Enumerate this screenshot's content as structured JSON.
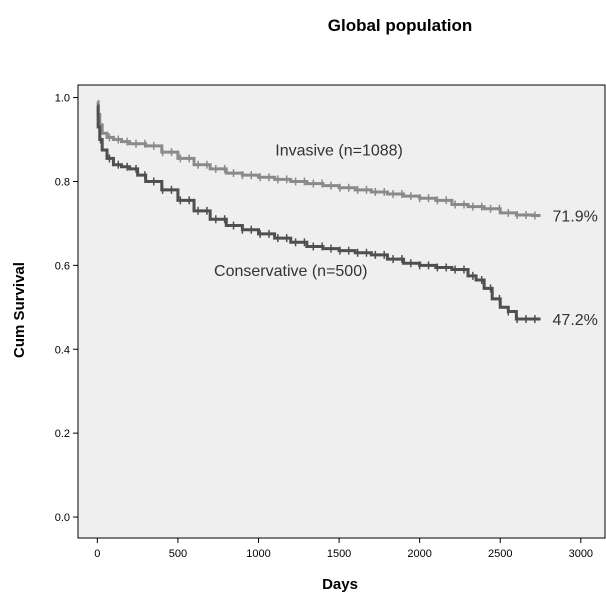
{
  "chart_data": {
    "type": "line",
    "title": "Global population",
    "xlabel": "Days",
    "ylabel": "Cum Survival",
    "xlim": [
      -120,
      3150
    ],
    "ylim": [
      -0.05,
      1.03
    ],
    "x_ticks": [
      0,
      500,
      1000,
      1500,
      2000,
      2500,
      3000
    ],
    "x_tick_labels": [
      "0",
      "500",
      "1000",
      "1500",
      "2000",
      "2500",
      "3000"
    ],
    "y_ticks": [
      0.0,
      0.2,
      0.4,
      0.6,
      0.8,
      1.0
    ],
    "y_tick_labels": [
      "0.0",
      "0.2",
      "0.4",
      "0.6",
      "0.8",
      "1.0"
    ],
    "plot_background": "#efefef",
    "grid": false,
    "legend": "none",
    "series": [
      {
        "name": "Invasive (n=1088)",
        "end_label": "71.9%",
        "color": "#8a8a8a",
        "x": [
          0,
          5,
          15,
          30,
          60,
          100,
          150,
          200,
          300,
          400,
          500,
          600,
          700,
          800,
          900,
          1000,
          1100,
          1200,
          1300,
          1400,
          1500,
          1600,
          1700,
          1800,
          1900,
          2000,
          2100,
          2200,
          2300,
          2400,
          2500,
          2600,
          2700,
          2750
        ],
        "y": [
          0.99,
          0.96,
          0.935,
          0.915,
          0.905,
          0.9,
          0.895,
          0.89,
          0.885,
          0.87,
          0.855,
          0.84,
          0.83,
          0.82,
          0.815,
          0.81,
          0.805,
          0.8,
          0.795,
          0.79,
          0.785,
          0.78,
          0.775,
          0.77,
          0.765,
          0.76,
          0.755,
          0.745,
          0.74,
          0.735,
          0.725,
          0.72,
          0.719,
          0.719
        ]
      },
      {
        "name": "Conservative (n=500)",
        "end_label": "47.2%",
        "color": "#4f4f4f",
        "x": [
          0,
          5,
          15,
          30,
          60,
          100,
          150,
          200,
          250,
          300,
          400,
          500,
          600,
          700,
          800,
          900,
          1000,
          1100,
          1200,
          1300,
          1400,
          1500,
          1600,
          1700,
          1800,
          1900,
          2000,
          2100,
          2200,
          2300,
          2350,
          2400,
          2450,
          2500,
          2550,
          2600,
          2700,
          2750
        ],
        "y": [
          0.98,
          0.93,
          0.9,
          0.875,
          0.855,
          0.84,
          0.835,
          0.83,
          0.815,
          0.8,
          0.78,
          0.755,
          0.73,
          0.71,
          0.695,
          0.685,
          0.675,
          0.665,
          0.655,
          0.645,
          0.64,
          0.635,
          0.63,
          0.625,
          0.615,
          0.605,
          0.6,
          0.595,
          0.59,
          0.575,
          0.565,
          0.545,
          0.52,
          0.5,
          0.49,
          0.472,
          0.472,
          0.472
        ]
      }
    ],
    "annotations": [
      {
        "text": "Invasive (n=1088)",
        "x": 1500,
        "y": 0.862
      },
      {
        "text": "Conservative (n=500)",
        "x": 1200,
        "y": 0.575
      }
    ]
  }
}
